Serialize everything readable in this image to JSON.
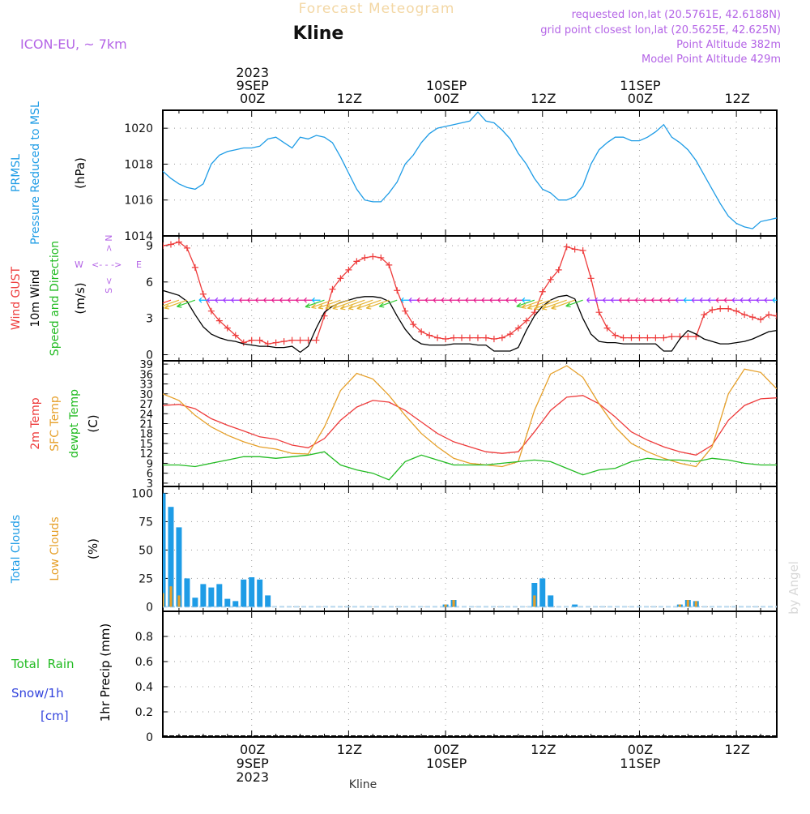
{
  "header": {
    "title": "Forecast Meteogram",
    "station": "Kline",
    "model": "ICON-EU, ~ 7km",
    "requested": "requested lon,lat (20.5761E, 42.6188N)",
    "gridpoint": "grid point closest lon,lat (20.5625E, 42.625N)",
    "point_altitude": "Point Altitude 382m",
    "model_altitude": "Model Point Altitude 429m",
    "credit": "by Angel",
    "footer_station": "Kline"
  },
  "time_axis": {
    "top_labels": [
      {
        "lines": [
          "2023",
          "9SEP",
          "00Z"
        ],
        "hour": 0
      },
      {
        "lines": [
          "12Z"
        ],
        "hour": 12
      },
      {
        "lines": [
          "10SEP",
          "00Z"
        ],
        "hour": 24
      },
      {
        "lines": [
          "12Z"
        ],
        "hour": 36
      },
      {
        "lines": [
          "11SEP",
          "00Z"
        ],
        "hour": 48
      },
      {
        "lines": [
          "12Z"
        ],
        "hour": 60
      }
    ],
    "bottom_labels": [
      {
        "lines": [
          "00Z",
          "9SEP",
          "2023"
        ],
        "hour": 0
      },
      {
        "lines": [
          "12Z"
        ],
        "hour": 12
      },
      {
        "lines": [
          "00Z",
          "10SEP"
        ],
        "hour": 24
      },
      {
        "lines": [
          "12Z"
        ],
        "hour": 36
      },
      {
        "lines": [
          "00Z",
          "11SEP"
        ],
        "hour": 48
      },
      {
        "lines": [
          "12Z"
        ],
        "hour": 60
      }
    ],
    "start_hour": -11,
    "end_hour": 65
  },
  "chart_data": [
    {
      "id": "pressure",
      "type": "line",
      "side_labels": [
        {
          "text": "PRMSL",
          "color": "#1e9ce6"
        },
        {
          "text": "Pressure Reduced to MSL",
          "color": "#1e9ce6"
        }
      ],
      "ylabel": "(hPa)",
      "ylim": [
        1014,
        1021
      ],
      "yticks": [
        1014,
        1016,
        1018,
        1020
      ],
      "series": [
        {
          "color": "#1e9ce6",
          "x": [
            -11,
            -10,
            -9,
            -8,
            -7,
            -6,
            -5,
            -4,
            -3,
            -2,
            -1,
            0,
            1,
            2,
            3,
            4,
            5,
            6,
            7,
            8,
            9,
            10,
            11,
            12,
            13,
            14,
            15,
            16,
            17,
            18,
            19,
            20,
            21,
            22,
            23,
            24,
            25,
            26,
            27,
            28,
            29,
            30,
            31,
            32,
            33,
            34,
            35,
            36,
            37,
            38,
            39,
            40,
            41,
            42,
            43,
            44,
            45,
            46,
            47,
            48,
            49,
            50,
            51,
            52,
            53,
            54,
            55,
            56,
            57,
            58,
            59,
            60,
            61,
            62,
            63,
            64,
            65
          ],
          "values": [
            1017.6,
            1017.2,
            1016.9,
            1016.7,
            1016.6,
            1016.9,
            1018.0,
            1018.5,
            1018.7,
            1018.8,
            1018.9,
            1018.9,
            1019.0,
            1019.4,
            1019.5,
            1019.2,
            1018.9,
            1019.5,
            1019.4,
            1019.6,
            1019.5,
            1019.2,
            1018.4,
            1017.5,
            1016.6,
            1016.0,
            1015.9,
            1015.9,
            1016.4,
            1017.0,
            1018.0,
            1018.5,
            1019.2,
            1019.7,
            1020.0,
            1020.1,
            1020.2,
            1020.3,
            1020.4,
            1020.9,
            1020.4,
            1020.3,
            1019.9,
            1019.4,
            1018.6,
            1018.0,
            1017.2,
            1016.6,
            1016.4,
            1016.0,
            1016.0,
            1016.2,
            1016.8,
            1018.0,
            1018.8,
            1019.2,
            1019.5,
            1019.5,
            1019.3,
            1019.3,
            1019.5,
            1019.8,
            1020.2,
            1019.5,
            1019.2,
            1018.8,
            1018.2,
            1017.4,
            1016.6,
            1015.8,
            1015.1,
            1014.7,
            1014.5,
            1014.4,
            1014.8,
            1014.9,
            1015.0
          ]
        }
      ]
    },
    {
      "id": "wind",
      "type": "line",
      "side_labels": [
        {
          "text": "Wind GUST",
          "color": "#ee3b3b"
        },
        {
          "text": "10m Wind",
          "color": "#000000"
        },
        {
          "text": "Speed and Direction",
          "color": "#22bb22"
        }
      ],
      "ylabel": "(m/s)",
      "ylim": [
        -0.5,
        9.8
      ],
      "yticks": [
        0,
        3,
        6,
        9
      ],
      "compass": {
        "n": "N",
        "s": "S",
        "w": "W",
        "e": "E",
        "color": "#b464e6"
      },
      "barb_row_value": 4.5,
      "barb_colors": [
        "#e6198c",
        "#9b30ff",
        "#00b4ff",
        "#33cc33",
        "#e6b432",
        "#ff3030"
      ],
      "series": [
        {
          "name_ref": "Wind GUST",
          "color": "#ee3b3b",
          "marker": "+",
          "x": [
            -11,
            -10,
            -9,
            -8,
            -7,
            -6,
            -5,
            -4,
            -3,
            -2,
            -1,
            0,
            1,
            2,
            3,
            4,
            5,
            6,
            7,
            8,
            9,
            10,
            11,
            12,
            13,
            14,
            15,
            16,
            17,
            18,
            19,
            20,
            21,
            22,
            23,
            24,
            25,
            26,
            27,
            28,
            29,
            30,
            31,
            32,
            33,
            34,
            35,
            36,
            37,
            38,
            39,
            40,
            41,
            42,
            43,
            44,
            45,
            46,
            47,
            48,
            49,
            50,
            51,
            52,
            53,
            54,
            55,
            56,
            57,
            58,
            59,
            60,
            61,
            62,
            63,
            64,
            65
          ],
          "values": [
            9.0,
            9.1,
            9.3,
            8.8,
            7.2,
            5.0,
            3.6,
            2.8,
            2.2,
            1.6,
            1.0,
            1.2,
            1.2,
            0.9,
            1.0,
            1.1,
            1.2,
            1.2,
            1.2,
            1.2,
            3.2,
            5.4,
            6.3,
            7.0,
            7.7,
            8.0,
            8.1,
            8.0,
            7.4,
            5.3,
            3.6,
            2.5,
            1.9,
            1.6,
            1.4,
            1.3,
            1.4,
            1.4,
            1.4,
            1.4,
            1.4,
            1.3,
            1.4,
            1.7,
            2.2,
            2.8,
            3.5,
            5.2,
            6.2,
            7.0,
            8.9,
            8.7,
            8.6,
            6.3,
            3.5,
            2.2,
            1.6,
            1.4,
            1.4,
            1.4,
            1.4,
            1.4,
            1.4,
            1.5,
            1.5,
            1.5,
            1.5,
            3.3,
            3.7,
            3.8,
            3.8,
            3.6,
            3.3,
            3.1,
            2.9,
            3.3,
            3.2
          ]
        },
        {
          "name_ref": "10m Wind",
          "color": "#000000",
          "x": [
            -11,
            -10,
            -9,
            -8,
            -7,
            -6,
            -5,
            -4,
            -3,
            -2,
            -1,
            0,
            1,
            2,
            3,
            4,
            5,
            6,
            7,
            8,
            9,
            10,
            11,
            12,
            13,
            14,
            15,
            16,
            17,
            18,
            19,
            20,
            21,
            22,
            23,
            24,
            25,
            26,
            27,
            28,
            29,
            30,
            31,
            32,
            33,
            34,
            35,
            36,
            37,
            38,
            39,
            40,
            41,
            42,
            43,
            44,
            45,
            46,
            47,
            48,
            49,
            50,
            51,
            52,
            53,
            54,
            55,
            56,
            57,
            58,
            59,
            60,
            61,
            62,
            63,
            64,
            65
          ],
          "values": [
            5.3,
            5.1,
            4.9,
            4.4,
            3.3,
            2.3,
            1.7,
            1.4,
            1.2,
            1.1,
            0.9,
            0.8,
            0.7,
            0.7,
            0.6,
            0.6,
            0.7,
            0.2,
            0.7,
            2.2,
            3.5,
            4.0,
            4.3,
            4.5,
            4.7,
            4.8,
            4.8,
            4.7,
            4.4,
            3.2,
            2.1,
            1.3,
            0.9,
            0.8,
            0.8,
            0.8,
            0.9,
            0.9,
            0.9,
            0.8,
            0.8,
            0.3,
            0.3,
            0.3,
            0.6,
            2.0,
            3.2,
            4.0,
            4.5,
            4.8,
            4.9,
            4.6,
            3.0,
            1.7,
            1.1,
            1.0,
            1.0,
            0.9,
            0.9,
            0.9,
            0.9,
            0.9,
            0.3,
            0.3,
            1.3,
            2.0,
            1.7,
            1.3,
            1.1,
            0.9,
            0.9,
            1.0,
            1.1,
            1.3,
            1.6,
            1.9,
            2.0
          ]
        }
      ]
    },
    {
      "id": "temperature",
      "type": "line",
      "side_labels": [
        {
          "text": "2m Temp",
          "color": "#ee3b3b"
        },
        {
          "text": "SFC Temp",
          "color": "#e6a02a"
        },
        {
          "text": "dewpt Temp",
          "color": "#22bb22"
        }
      ],
      "ylabel": "(C)",
      "ylim": [
        2,
        40
      ],
      "yticks": [
        3,
        6,
        9,
        12,
        15,
        18,
        21,
        24,
        27,
        30,
        33,
        36,
        39
      ],
      "series": [
        {
          "name_ref": "2m Temp",
          "color": "#ee3b3b",
          "x": [
            -11,
            -9,
            -7,
            -5,
            -3,
            -1,
            1,
            3,
            5,
            7,
            9,
            11,
            13,
            15,
            17,
            19,
            21,
            23,
            25,
            27,
            29,
            31,
            33,
            35,
            37,
            39,
            41,
            43,
            45,
            47,
            49,
            51,
            53,
            55,
            57,
            59,
            61,
            63,
            65
          ],
          "values": [
            26.5,
            26.8,
            25.5,
            22.5,
            20.5,
            18.8,
            17.0,
            16.3,
            14.5,
            13.7,
            16.5,
            22.0,
            26.0,
            28.0,
            27.5,
            25.0,
            21.5,
            18.0,
            15.5,
            14.0,
            12.5,
            12.0,
            12.5,
            18.5,
            25.0,
            29.0,
            29.5,
            27.0,
            23.0,
            18.5,
            16.0,
            14.0,
            12.5,
            11.5,
            14.5,
            22.0,
            26.5,
            28.5,
            28.8
          ]
        },
        {
          "name_ref": "SFC Temp",
          "color": "#e6a02a",
          "x": [
            -11,
            -9,
            -7,
            -5,
            -3,
            -1,
            1,
            3,
            5,
            7,
            9,
            11,
            13,
            15,
            17,
            19,
            21,
            23,
            25,
            27,
            29,
            31,
            33,
            35,
            37,
            39,
            41,
            43,
            45,
            47,
            49,
            51,
            53,
            55,
            57,
            59,
            61,
            63,
            65
          ],
          "values": [
            30.0,
            28.0,
            23.5,
            20.0,
            17.5,
            15.5,
            14.0,
            13.3,
            12.0,
            11.8,
            20.0,
            31.0,
            36.2,
            34.5,
            29.5,
            23.5,
            18.0,
            14.0,
            10.5,
            9.0,
            8.5,
            8.0,
            9.5,
            25.0,
            36.0,
            38.5,
            35.0,
            27.0,
            20.0,
            15.0,
            12.5,
            10.5,
            9.0,
            8.0,
            14.0,
            30.0,
            37.5,
            36.5,
            31.5
          ]
        },
        {
          "name_ref": "dewpt Temp",
          "color": "#22bb22",
          "x": [
            -11,
            -9,
            -7,
            -5,
            -3,
            -1,
            1,
            3,
            5,
            7,
            9,
            11,
            13,
            15,
            17,
            19,
            21,
            23,
            25,
            27,
            29,
            31,
            33,
            35,
            37,
            39,
            41,
            43,
            45,
            47,
            49,
            51,
            53,
            55,
            57,
            59,
            61,
            63,
            65
          ],
          "values": [
            8.5,
            8.5,
            8.0,
            9.0,
            10.0,
            11.0,
            11.0,
            10.5,
            11.0,
            11.5,
            12.5,
            8.5,
            7.0,
            6.0,
            4.0,
            9.5,
            11.5,
            10.0,
            8.5,
            8.5,
            8.5,
            9.0,
            9.5,
            10.0,
            9.5,
            7.5,
            5.5,
            7.0,
            7.5,
            9.5,
            10.5,
            10.0,
            10.0,
            9.5,
            10.5,
            10.0,
            9.0,
            8.5,
            8.5
          ]
        }
      ]
    },
    {
      "id": "clouds",
      "type": "bar",
      "side_labels": [
        {
          "text": "Total Clouds",
          "color": "#1e9ce6"
        },
        {
          "text": "Low Clouds",
          "color": "#e6a02a"
        }
      ],
      "ylabel": "(%)",
      "ylim": [
        -4,
        106
      ],
      "yticks": [
        0,
        25,
        50,
        75,
        100
      ],
      "baseline_color": "#b8d8ee",
      "series": [
        {
          "name_ref": "Total Clouds",
          "color": "#1e9ce6",
          "x": [
            -11,
            -10,
            -9,
            -8,
            -7,
            -6,
            -5,
            -4,
            -3,
            -2,
            -1,
            0,
            1,
            2,
            24,
            25,
            35,
            36,
            37,
            38,
            40,
            53,
            54,
            55
          ],
          "values": [
            100,
            88,
            70,
            25,
            8,
            20,
            17,
            20,
            7,
            5,
            24,
            26,
            24,
            10,
            2,
            6,
            21,
            25,
            10,
            0,
            2,
            2,
            6,
            5
          ]
        },
        {
          "name_ref": "Low Clouds",
          "color": "#e6a02a",
          "x": [
            -11,
            -10,
            -9,
            24,
            25,
            35,
            53,
            54,
            55
          ],
          "values": [
            12,
            18,
            10,
            2,
            6,
            10,
            2,
            6,
            5
          ]
        }
      ]
    },
    {
      "id": "precip",
      "type": "bar",
      "side_labels": [
        {
          "text": "Total  Rain",
          "color": "#22bb22"
        },
        {
          "text": "Snow/1h",
          "color": "#3344dd"
        },
        {
          "text": "[cm]",
          "color": "#3344dd"
        }
      ],
      "ylabel": "1hr Precip (mm)",
      "ylim": [
        0,
        1
      ],
      "yticks": [
        0,
        0.2,
        0.4,
        0.6,
        0.8
      ],
      "series": []
    }
  ]
}
